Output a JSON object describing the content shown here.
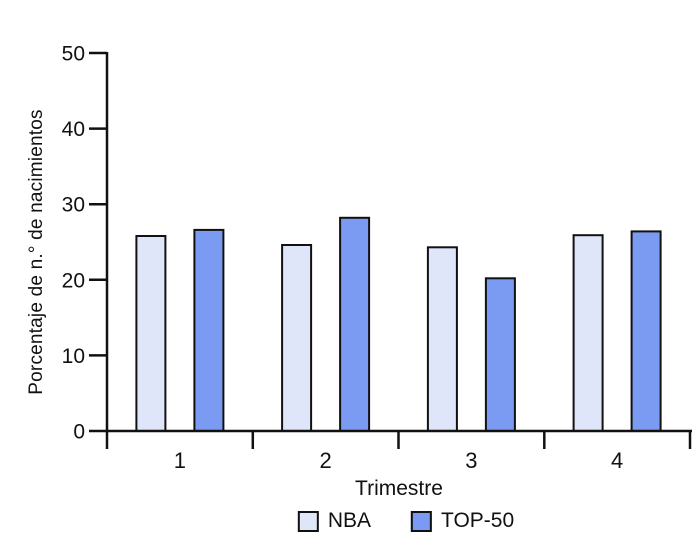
{
  "chart_data": {
    "type": "bar",
    "title": "",
    "categories": [
      "1",
      "2",
      "3",
      "4"
    ],
    "series": [
      {
        "name": "NBA",
        "color": "#dfe6f9",
        "values": [
          25.8,
          24.6,
          24.3,
          25.9
        ]
      },
      {
        "name": "TOP-50",
        "color": "#7b9bf2",
        "values": [
          26.6,
          28.2,
          20.2,
          26.4
        ]
      }
    ],
    "xlabel": "Trimestre",
    "ylabel": "Porcentaje de n.° de nacimientos",
    "ylim": [
      0,
      50
    ],
    "yticks": [
      0,
      10,
      20,
      30,
      40,
      50
    ],
    "grid": false,
    "legend_position": "bottom",
    "axis_color": "#111111",
    "bar_border_color": "#111111",
    "background": "#ffffff"
  }
}
